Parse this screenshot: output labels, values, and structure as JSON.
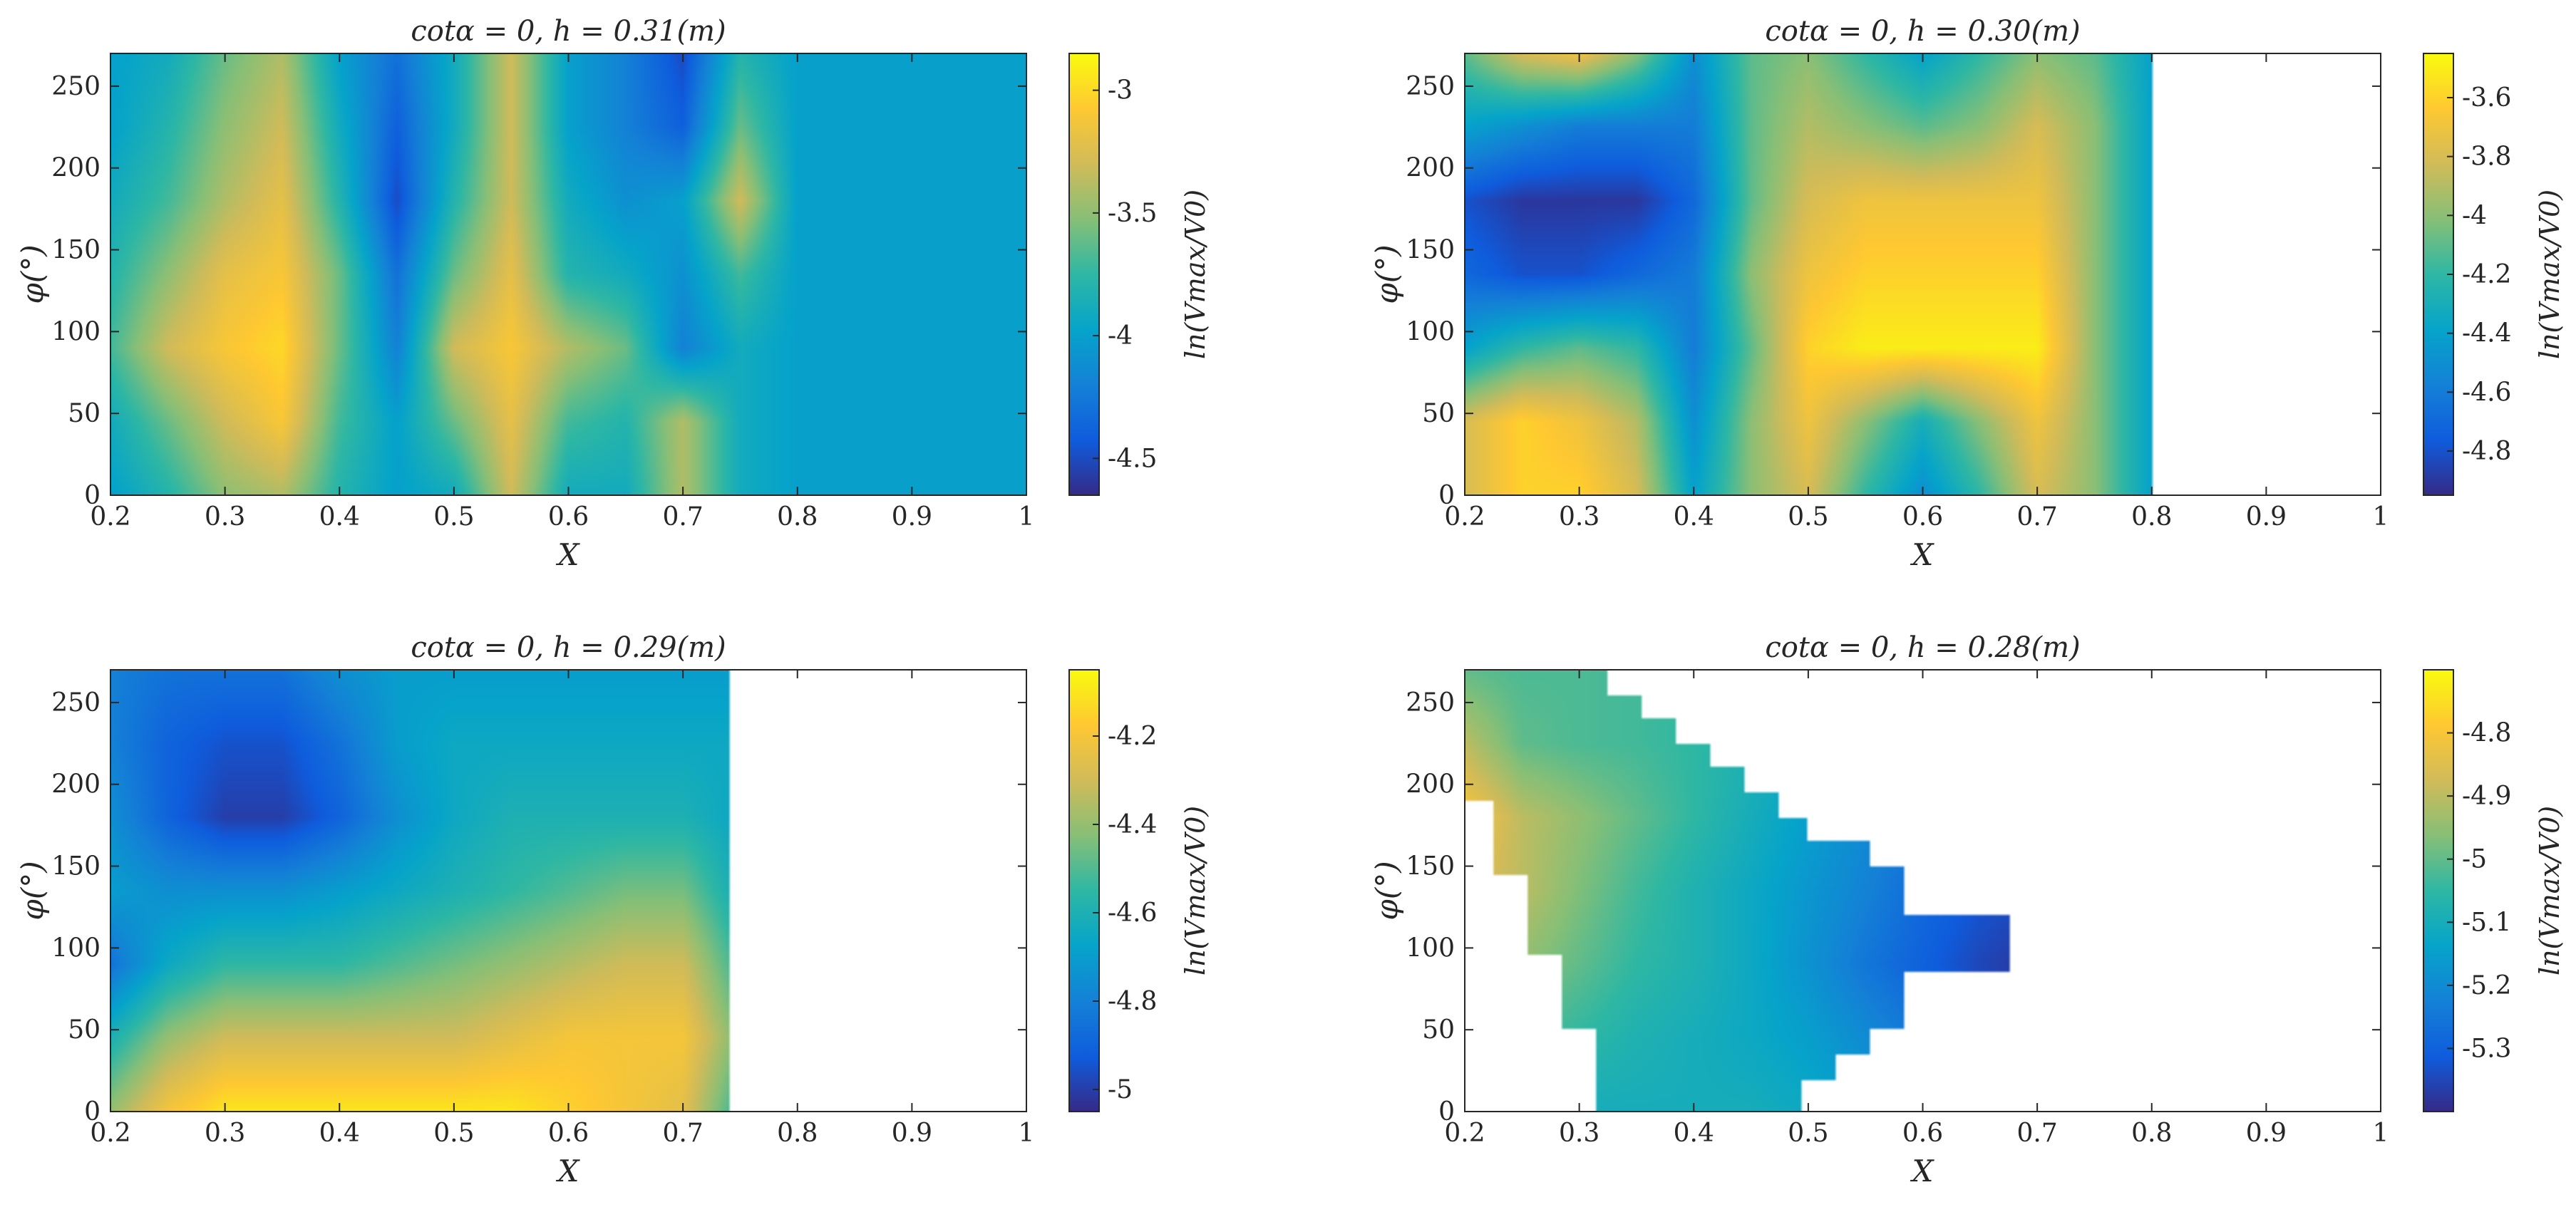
{
  "chart_data": [
    {
      "type": "heatmap",
      "title": "cotα = 0, h = 0.31(m)",
      "xlabel": "X",
      "ylabel": "φ(°)",
      "colorbar_label": "ln(Vmax/V0)",
      "xlim": [
        0.2,
        1
      ],
      "ylim": [
        0,
        270
      ],
      "xticks": [
        "0.2",
        "0.3",
        "0.4",
        "0.5",
        "0.6",
        "0.7",
        "0.8",
        "0.9",
        "1"
      ],
      "yticks": [
        "0",
        "50",
        "100",
        "150",
        "200",
        "250"
      ],
      "clim": [
        -4.65,
        -2.85
      ],
      "cticks": [
        "-4.5",
        "-4",
        "-3.5",
        "-3"
      ],
      "x": [
        0.2,
        0.25,
        0.3,
        0.35,
        0.4,
        0.45,
        0.5,
        0.55,
        0.6,
        0.65,
        0.7,
        0.75,
        0.8,
        0.85,
        0.9,
        0.95,
        1.0
      ],
      "y": [
        0,
        45,
        90,
        135,
        180,
        225,
        270
      ],
      "z": [
        [
          -4.0,
          -3.8,
          -3.5,
          -3.4,
          -3.8,
          -4.0,
          -3.9,
          -3.3,
          -3.9,
          -3.9,
          -3.4,
          -3.9,
          -4.0,
          -4.0,
          -4.0,
          -4.0,
          -4.0
        ],
        [
          -3.9,
          -3.6,
          -3.3,
          -3.1,
          -3.7,
          -4.0,
          -3.6,
          -3.2,
          -3.7,
          -3.8,
          -3.4,
          -3.9,
          -4.0,
          -4.0,
          -4.0,
          -4.0,
          -4.0
        ],
        [
          -3.7,
          -3.3,
          -3.1,
          -3.0,
          -3.6,
          -4.2,
          -3.3,
          -3.1,
          -3.4,
          -3.6,
          -4.2,
          -3.9,
          -4.0,
          -4.0,
          -4.0,
          -4.0,
          -4.0
        ],
        [
          -3.8,
          -3.5,
          -3.2,
          -3.1,
          -3.6,
          -4.3,
          -3.6,
          -3.2,
          -3.8,
          -3.9,
          -4.1,
          -3.7,
          -4.0,
          -4.0,
          -4.0,
          -4.0,
          -4.0
        ],
        [
          -3.9,
          -3.7,
          -3.4,
          -3.2,
          -3.8,
          -4.5,
          -3.8,
          -3.3,
          -3.9,
          -4.1,
          -4.0,
          -3.3,
          -4.0,
          -4.0,
          -4.0,
          -4.0,
          -4.0
        ],
        [
          -4.0,
          -3.8,
          -3.5,
          -3.3,
          -3.9,
          -4.4,
          -3.9,
          -3.3,
          -4.0,
          -4.2,
          -4.4,
          -3.6,
          -4.0,
          -4.0,
          -4.0,
          -4.0,
          -4.0
        ],
        [
          -4.0,
          -3.9,
          -3.6,
          -3.4,
          -4.0,
          -4.3,
          -3.9,
          -3.3,
          -4.0,
          -4.2,
          -4.5,
          -3.8,
          -4.0,
          -4.0,
          -4.0,
          -4.0,
          -4.0
        ]
      ]
    },
    {
      "type": "heatmap",
      "title": "cotα = 0, h = 0.30(m)",
      "xlabel": "X",
      "ylabel": "φ(°)",
      "colorbar_label": "ln(Vmax/V0)",
      "xlim": [
        0.2,
        1
      ],
      "ylim": [
        0,
        270
      ],
      "xticks": [
        "0.2",
        "0.3",
        "0.4",
        "0.5",
        "0.6",
        "0.7",
        "0.8",
        "0.9",
        "1"
      ],
      "yticks": [
        "0",
        "50",
        "100",
        "150",
        "200",
        "250"
      ],
      "clim": [
        -4.95,
        -3.45
      ],
      "cticks": [
        "-4.8",
        "-4.6",
        "-4.4",
        "-4.2",
        "-4",
        "-3.8",
        "-3.6"
      ],
      "x": [
        0.2,
        0.25,
        0.3,
        0.35,
        0.4,
        0.45,
        0.5,
        0.55,
        0.6,
        0.65,
        0.7,
        0.75,
        0.8
      ],
      "y": [
        0,
        45,
        90,
        135,
        180,
        225,
        270
      ],
      "z": [
        [
          -3.8,
          -3.6,
          -3.6,
          -3.8,
          -4.4,
          -4.0,
          -3.8,
          -4.2,
          -4.5,
          -4.2,
          -3.8,
          -4.0,
          -4.4
        ],
        [
          -3.8,
          -3.6,
          -3.7,
          -3.9,
          -4.5,
          -4.0,
          -3.7,
          -4.0,
          -4.3,
          -4.0,
          -3.7,
          -4.0,
          -4.4
        ],
        [
          -4.4,
          -4.2,
          -4.1,
          -4.2,
          -4.6,
          -4.1,
          -3.6,
          -3.5,
          -3.5,
          -3.5,
          -3.5,
          -4.0,
          -4.4
        ],
        [
          -4.7,
          -4.8,
          -4.8,
          -4.7,
          -4.6,
          -4.0,
          -3.7,
          -3.6,
          -3.6,
          -3.6,
          -3.6,
          -4.0,
          -4.4
        ],
        [
          -4.8,
          -4.9,
          -4.9,
          -4.9,
          -4.7,
          -4.1,
          -3.8,
          -3.7,
          -3.7,
          -3.7,
          -3.7,
          -4.0,
          -4.4
        ],
        [
          -4.4,
          -4.5,
          -4.6,
          -4.6,
          -4.6,
          -4.1,
          -3.9,
          -4.0,
          -4.1,
          -4.0,
          -3.8,
          -4.0,
          -4.4
        ],
        [
          -4.1,
          -3.8,
          -3.7,
          -4.0,
          -4.5,
          -4.1,
          -4.0,
          -4.2,
          -4.4,
          -4.2,
          -4.0,
          -4.1,
          -4.4
        ]
      ]
    },
    {
      "type": "heatmap",
      "title": "cotα = 0, h = 0.29(m)",
      "xlabel": "X",
      "ylabel": "φ(°)",
      "colorbar_label": "ln(Vmax/V0)",
      "xlim": [
        0.2,
        1
      ],
      "ylim": [
        0,
        270
      ],
      "xticks": [
        "0.2",
        "0.3",
        "0.4",
        "0.5",
        "0.6",
        "0.7",
        "0.8",
        "0.9",
        "1"
      ],
      "yticks": [
        "0",
        "50",
        "100",
        "150",
        "200",
        "250"
      ],
      "clim": [
        -5.05,
        -4.05
      ],
      "cticks": [
        "-5",
        "-4.8",
        "-4.6",
        "-4.4",
        "-4.2"
      ],
      "x": [
        0.2,
        0.25,
        0.3,
        0.35,
        0.4,
        0.45,
        0.5,
        0.55,
        0.6,
        0.65,
        0.7,
        0.74
      ],
      "y": [
        0,
        45,
        90,
        135,
        180,
        225,
        270
      ],
      "z": [
        [
          -4.4,
          -4.2,
          -4.1,
          -4.1,
          -4.1,
          -4.1,
          -4.1,
          -4.1,
          -4.15,
          -4.2,
          -4.25,
          -4.5
        ],
        [
          -4.6,
          -4.4,
          -4.3,
          -4.3,
          -4.3,
          -4.3,
          -4.3,
          -4.25,
          -4.2,
          -4.2,
          -4.2,
          -4.4
        ],
        [
          -4.85,
          -4.65,
          -4.55,
          -4.55,
          -4.55,
          -4.5,
          -4.45,
          -4.4,
          -4.35,
          -4.3,
          -4.3,
          -4.5
        ],
        [
          -4.7,
          -4.75,
          -4.75,
          -4.75,
          -4.7,
          -4.65,
          -4.6,
          -4.55,
          -4.5,
          -4.45,
          -4.45,
          -4.6
        ],
        [
          -4.75,
          -4.9,
          -5.0,
          -5.0,
          -4.9,
          -4.75,
          -4.65,
          -4.6,
          -4.6,
          -4.6,
          -4.6,
          -4.65
        ],
        [
          -4.8,
          -4.9,
          -4.95,
          -4.95,
          -4.85,
          -4.7,
          -4.65,
          -4.65,
          -4.65,
          -4.65,
          -4.65,
          -4.65
        ],
        [
          -4.8,
          -4.85,
          -4.85,
          -4.85,
          -4.75,
          -4.7,
          -4.7,
          -4.7,
          -4.7,
          -4.7,
          -4.7,
          -4.7
        ]
      ]
    },
    {
      "type": "heatmap",
      "title": "cotα = 0, h = 0.28(m)",
      "xlabel": "X",
      "ylabel": "φ(°)",
      "colorbar_label": "ln(Vmax/V0)",
      "xlim": [
        0.2,
        1
      ],
      "ylim": [
        0,
        270
      ],
      "xticks": [
        "0.2",
        "0.3",
        "0.4",
        "0.5",
        "0.6",
        "0.7",
        "0.8",
        "0.9",
        "1"
      ],
      "yticks": [
        "0",
        "50",
        "100",
        "150",
        "200",
        "250"
      ],
      "clim": [
        -5.4,
        -4.7
      ],
      "cticks": [
        "-5.3",
        "-5.2",
        "-5.1",
        "-5",
        "-4.9",
        "-4.8"
      ],
      "x": [
        0.2,
        0.25,
        0.3,
        0.35,
        0.4,
        0.45,
        0.5,
        0.55,
        0.6,
        0.65,
        0.7
      ],
      "y": [
        0,
        45,
        90,
        135,
        180,
        225,
        270
      ],
      "z": [
        [
          -5.1,
          -5.1,
          -5.1,
          -5.1,
          -5.1,
          -5.1,
          -5.12,
          -5.15,
          -5.2,
          -5.25,
          -5.3
        ],
        [
          -5.0,
          -5.02,
          -5.05,
          -5.08,
          -5.1,
          -5.12,
          -5.15,
          -5.2,
          -5.25,
          -5.3,
          -5.35
        ],
        [
          -4.9,
          -4.95,
          -5.0,
          -5.05,
          -5.08,
          -5.12,
          -5.18,
          -5.25,
          -5.3,
          -5.35,
          -5.38
        ],
        [
          -4.85,
          -4.9,
          -4.97,
          -5.03,
          -5.08,
          -5.12,
          -5.17,
          -5.22,
          -5.28,
          -5.32,
          -5.35
        ],
        [
          -4.8,
          -4.9,
          -4.95,
          -5.0,
          -5.05,
          -5.1,
          -5.15,
          -5.2,
          -5.25,
          -5.3,
          -5.33
        ],
        [
          -4.9,
          -5.0,
          -5.02,
          -5.03,
          -5.05,
          -5.08,
          -5.12,
          -5.15,
          -5.2,
          -5.25,
          -5.3
        ],
        [
          -5.0,
          -5.02,
          -5.02,
          -5.03,
          -5.05,
          -5.08,
          -5.1,
          -5.12,
          -5.15,
          -5.2,
          -5.25
        ]
      ],
      "mask": {
        "shape": "staircase",
        "x_min_by_phi": [
          [
            0,
            0.315
          ],
          [
            50,
            0.285
          ],
          [
            95,
            0.255
          ],
          [
            145,
            0.225
          ],
          [
            190,
            0.2
          ]
        ],
        "x_max_by_phi": [
          [
            0,
            0.495
          ],
          [
            20,
            0.525
          ],
          [
            35,
            0.555
          ],
          [
            50,
            0.585
          ],
          [
            85,
            0.675
          ],
          [
            120,
            0.585
          ],
          [
            150,
            0.555
          ],
          [
            165,
            0.5
          ],
          [
            180,
            0.475
          ],
          [
            195,
            0.445
          ],
          [
            210,
            0.415
          ],
          [
            225,
            0.385
          ],
          [
            240,
            0.355
          ],
          [
            255,
            0.325
          ],
          [
            270,
            0.29
          ]
        ]
      }
    }
  ]
}
